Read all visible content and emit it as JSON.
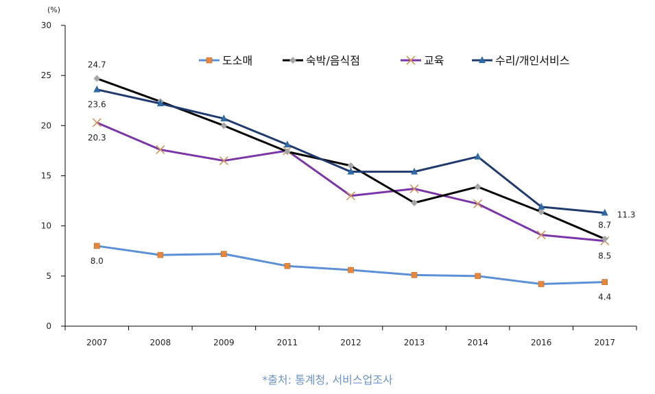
{
  "chart_data": {
    "type": "line",
    "unit": "(%)",
    "categories": [
      "2007",
      "2008",
      "2009",
      "2011",
      "2012",
      "2013",
      "2014",
      "2016",
      "2017"
    ],
    "ylim": [
      0,
      30
    ],
    "yticks": [
      0,
      5,
      10,
      15,
      20,
      25,
      30
    ],
    "grid": false,
    "legend_position": "top",
    "series": [
      {
        "name": "도소매",
        "color": "#5b8fd6",
        "marker": "square",
        "marker_color": "#e8873a",
        "values": [
          8.0,
          7.1,
          7.2,
          6.0,
          5.6,
          5.1,
          5.0,
          4.2,
          4.4
        ]
      },
      {
        "name": "숙박/음식점",
        "color": "#000000",
        "marker": "diamond",
        "marker_color": "#a6a6a6",
        "values": [
          24.7,
          22.4,
          20.0,
          17.4,
          16.0,
          12.3,
          13.9,
          11.4,
          8.7
        ]
      },
      {
        "name": "교육",
        "color": "#7a35a8",
        "marker": "x",
        "marker_color": "#d4935a",
        "values": [
          20.3,
          17.6,
          16.5,
          17.5,
          13.0,
          13.7,
          12.2,
          9.1,
          8.5
        ]
      },
      {
        "name": "수리/개인서비스",
        "color": "#1f3a6e",
        "marker": "triangle",
        "marker_color": "#2e6aa8",
        "values": [
          23.6,
          22.2,
          20.7,
          18.1,
          15.4,
          15.4,
          16.9,
          11.9,
          11.3
        ]
      }
    ],
    "annotations": [
      {
        "series": 0,
        "point": 0,
        "text": "8.0",
        "position": "below"
      },
      {
        "series": 0,
        "point": 8,
        "text": "4.4",
        "position": "below"
      },
      {
        "series": 1,
        "point": 0,
        "text": "24.7",
        "position": "above"
      },
      {
        "series": 1,
        "point": 8,
        "text": "8.7",
        "position": "above"
      },
      {
        "series": 2,
        "point": 0,
        "text": "20.3",
        "position": "below"
      },
      {
        "series": 2,
        "point": 8,
        "text": "8.5",
        "position": "below"
      },
      {
        "series": 3,
        "point": 0,
        "text": "23.6",
        "position": "below"
      },
      {
        "series": 3,
        "point": 8,
        "text": "11.3",
        "position": "right"
      }
    ]
  },
  "source_note": "*출처: 통계청, 서비스업조사"
}
